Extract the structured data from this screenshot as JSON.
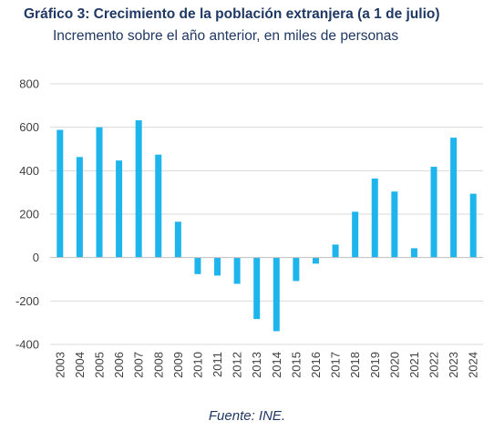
{
  "chart_data": {
    "type": "bar",
    "title": "Gráfico 3: Crecimiento de la población extranjera (a 1 de julio)",
    "subtitle": "Incremento sobre el año anterior, en miles de personas",
    "source": "Fuente: INE.",
    "xlabel": "",
    "ylabel": "",
    "categories": [
      "2003",
      "2004",
      "2005",
      "2006",
      "2007",
      "2008",
      "2009",
      "2010",
      "2011",
      "2012",
      "2013",
      "2014",
      "2015",
      "2016",
      "2017",
      "2018",
      "2019",
      "2020",
      "2021",
      "2022",
      "2023",
      "2024"
    ],
    "values": [
      588,
      463,
      600,
      447,
      632,
      474,
      165,
      -76,
      -83,
      -121,
      -283,
      -339,
      -108,
      -28,
      60,
      211,
      364,
      304,
      43,
      418,
      552,
      294
    ],
    "ylim": [
      -400,
      800
    ],
    "yticks": [
      -400,
      -200,
      0,
      200,
      400,
      600,
      800
    ],
    "grid": true,
    "legend": "none",
    "colors": {
      "bar": "#1eb4ec",
      "grid": "#d9d9d9",
      "text": "#1f3864",
      "tick": "#404040"
    }
  }
}
